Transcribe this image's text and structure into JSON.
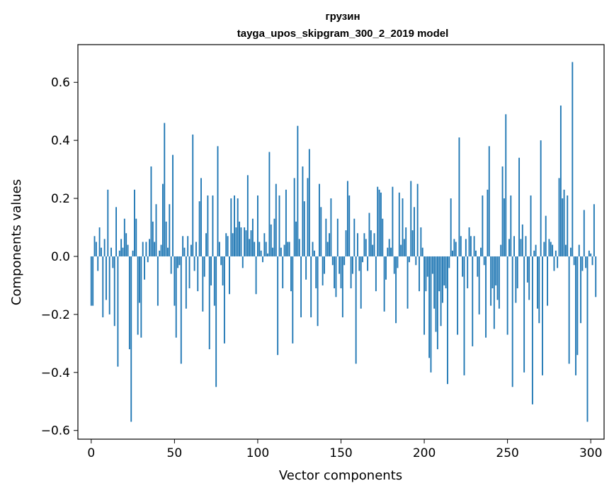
{
  "chart_data": {
    "type": "bar",
    "title": "грузин",
    "subtitle": "tayga_upos_skipgram_300_2_2019 model",
    "xlabel": "Vector components",
    "ylabel": "Components values",
    "xlim": [
      -8,
      308
    ],
    "ylim": [
      -0.63,
      0.73
    ],
    "xticks": [
      0,
      50,
      100,
      150,
      200,
      250,
      300
    ],
    "yticks": [
      -0.6,
      -0.4,
      -0.2,
      0.0,
      0.2,
      0.4,
      0.6
    ],
    "ytick_labels": [
      "−0.6",
      "−0.4",
      "−0.2",
      "0.0",
      "0.2",
      "0.4",
      "0.6"
    ],
    "bar_color": "#1f77b4",
    "values": [
      -0.17,
      -0.17,
      0.07,
      0.05,
      -0.05,
      0.1,
      0.03,
      -0.21,
      0.06,
      -0.15,
      0.23,
      -0.2,
      0.03,
      -0.04,
      -0.24,
      0.17,
      -0.38,
      0.02,
      0.06,
      0.03,
      0.13,
      0.08,
      0.04,
      -0.32,
      -0.57,
      0.02,
      0.23,
      0.13,
      -0.27,
      -0.16,
      -0.28,
      0.05,
      -0.08,
      0.05,
      -0.02,
      0.06,
      0.31,
      0.12,
      0.05,
      0.18,
      -0.17,
      0.02,
      0.04,
      0.25,
      0.46,
      0.12,
      0.03,
      0.18,
      -0.06,
      0.35,
      -0.17,
      -0.28,
      -0.04,
      -0.03,
      -0.37,
      0.07,
      0.03,
      -0.18,
      0.07,
      -0.11,
      0.04,
      0.42,
      -0.05,
      0.05,
      -0.12,
      0.19,
      0.27,
      -0.19,
      -0.07,
      0.08,
      0.21,
      -0.32,
      -0.1,
      0.21,
      -0.17,
      -0.45,
      0.38,
      0.05,
      -0.03,
      -0.1,
      -0.3,
      0.08,
      0.07,
      -0.13,
      0.2,
      0.08,
      0.21,
      0.1,
      0.2,
      0.12,
      0.1,
      -0.04,
      0.1,
      0.09,
      0.28,
      0.06,
      0.09,
      0.13,
      0.05,
      -0.13,
      0.21,
      0.05,
      0.02,
      -0.02,
      0.08,
      0.05,
      0.01,
      0.36,
      0.11,
      0.03,
      0.13,
      0.25,
      -0.34,
      0.21,
      0.03,
      -0.11,
      0.04,
      0.23,
      0.05,
      0.05,
      -0.12,
      -0.3,
      0.27,
      0.12,
      0.45,
      0.06,
      -0.21,
      0.31,
      0.19,
      -0.08,
      0.27,
      0.37,
      -0.21,
      0.05,
      0.02,
      -0.11,
      -0.24,
      0.25,
      0.17,
      -0.1,
      -0.06,
      0.13,
      0.05,
      0.08,
      0.2,
      -0.03,
      -0.11,
      -0.14,
      0.13,
      -0.06,
      -0.11,
      -0.21,
      -0.03,
      0.09,
      0.26,
      0.21,
      -0.11,
      -0.06,
      0.13,
      -0.37,
      0.08,
      -0.05,
      -0.18,
      -0.02,
      0.08,
      0.06,
      -0.05,
      0.15,
      0.09,
      0.04,
      0.08,
      -0.12,
      0.24,
      0.23,
      0.22,
      0.13,
      -0.19,
      -0.08,
      0.03,
      0.06,
      0.03,
      0.24,
      -0.06,
      -0.23,
      -0.04,
      0.22,
      0.04,
      0.2,
      0.06,
      0.1,
      -0.18,
      -0.02,
      0.26,
      0.09,
      0.17,
      -0.03,
      0.25,
      -0.12,
      0.1,
      0.03,
      -0.27,
      -0.12,
      -0.07,
      -0.35,
      -0.4,
      -0.06,
      -0.18,
      -0.26,
      -0.32,
      -0.12,
      -0.24,
      -0.16,
      -0.1,
      -0.11,
      -0.44,
      -0.04,
      0.2,
      0.02,
      0.06,
      0.05,
      -0.27,
      0.41,
      0.07,
      -0.07,
      -0.41,
      0.06,
      -0.11,
      0.1,
      0.07,
      -0.31,
      0.07,
      0.02,
      -0.07,
      -0.2,
      0.03,
      0.21,
      -0.03,
      -0.28,
      0.23,
      0.38,
      -0.17,
      -0.11,
      -0.25,
      -0.1,
      -0.15,
      -0.18,
      0.04,
      0.31,
      0.2,
      0.49,
      -0.27,
      0.06,
      0.21,
      -0.45,
      0.07,
      -0.16,
      -0.11,
      0.34,
      0.06,
      0.11,
      -0.4,
      0.07,
      -0.09,
      -0.15,
      0.21,
      -0.51,
      0.02,
      0.04,
      -0.18,
      -0.23,
      0.4,
      -0.41,
      0.05,
      0.14,
      -0.17,
      0.06,
      0.05,
      0.04,
      -0.05,
      0.02,
      -0.04,
      0.27,
      0.52,
      0.2,
      0.23,
      0.04,
      0.21,
      -0.37,
      0.03,
      0.67,
      -0.03,
      -0.41,
      -0.34,
      0.04,
      -0.23,
      -0.05,
      0.16,
      -0.04,
      -0.57,
      0.02,
      0.01,
      -0.03,
      0.18,
      -0.14
    ]
  }
}
